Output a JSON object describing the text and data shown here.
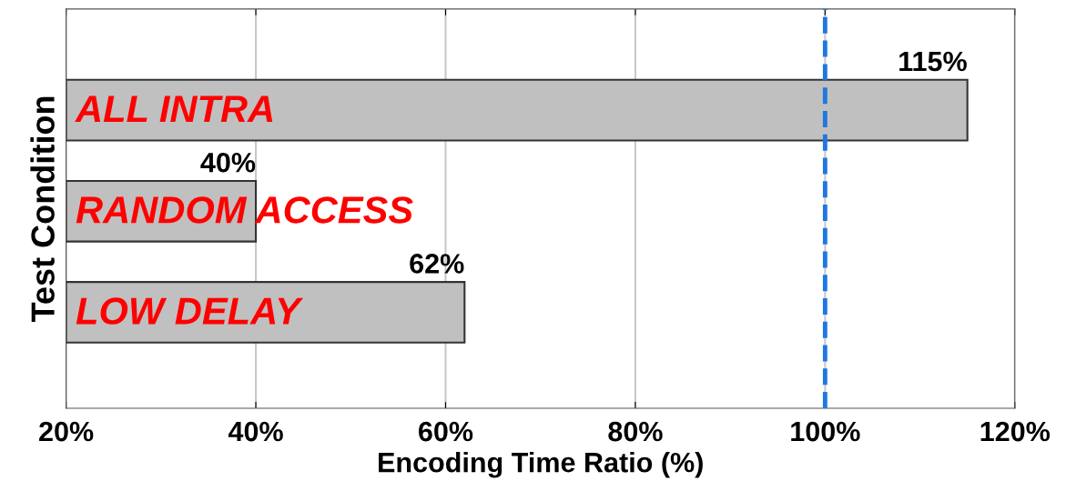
{
  "chart_data": {
    "type": "bar",
    "orientation": "horizontal",
    "categories": [
      "ALL INTRA",
      "RANDOM ACCESS",
      "LOW DELAY"
    ],
    "values": [
      115,
      40,
      62
    ],
    "value_labels": [
      "115%",
      "40%",
      "62%"
    ],
    "color": "#c0c0c0",
    "xlim": [
      20,
      120
    ],
    "xticks": [
      {
        "value": 20,
        "label": "20%"
      },
      {
        "value": 40,
        "label": "40%"
      },
      {
        "value": 60,
        "label": "60%"
      },
      {
        "value": 80,
        "label": "80%"
      },
      {
        "value": 100,
        "label": "100%"
      },
      {
        "value": 120,
        "label": "120%"
      }
    ],
    "xlabel": "Encoding Time Ratio (%)",
    "ylabel": "Test Condition",
    "grid": "x",
    "ref_lines": [
      {
        "axis": "x",
        "value": 100,
        "color": "#1f77e0",
        "line_style": "dashed"
      }
    ]
  }
}
